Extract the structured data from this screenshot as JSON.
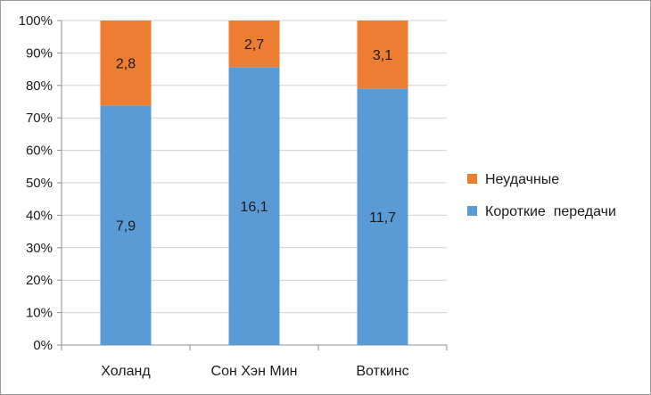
{
  "chart_data": {
    "type": "bar",
    "stacked": true,
    "percent_stacked": true,
    "categories": [
      "Холанд",
      "Сон Хэн Мин",
      "Воткинс"
    ],
    "series": [
      {
        "name": "Короткие  передачи",
        "values": [
          7.9,
          16.1,
          11.7
        ],
        "labels": [
          "7,9",
          "16,1",
          "11,7"
        ],
        "color": "#5b9bd5"
      },
      {
        "name": "Неудачные",
        "values": [
          2.8,
          2.7,
          3.1
        ],
        "labels": [
          "2,8",
          "2,7",
          "3,1"
        ],
        "color": "#ed7d31"
      }
    ],
    "y_ticks": [
      "0%",
      "10%",
      "20%",
      "30%",
      "40%",
      "50%",
      "60%",
      "70%",
      "80%",
      "90%",
      "100%"
    ],
    "ylim": [
      0,
      100
    ],
    "grid": true,
    "legend_position": "right"
  }
}
